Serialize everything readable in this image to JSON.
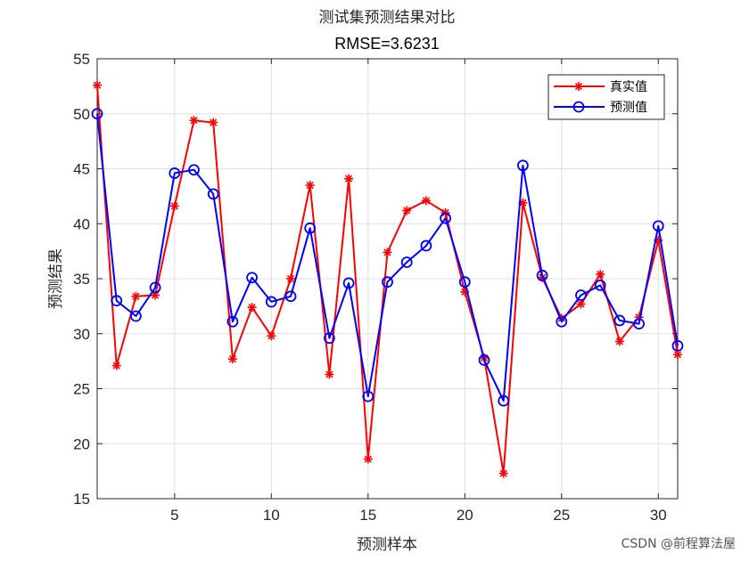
{
  "chart_data": {
    "type": "line",
    "title": "测试集预测结果对比",
    "subtitle": "RMSE=3.6231",
    "xlabel": "预测样本",
    "ylabel": "预测结果",
    "xlim": [
      1,
      31
    ],
    "ylim": [
      15,
      55
    ],
    "xticks": [
      5,
      10,
      15,
      20,
      25,
      30
    ],
    "yticks": [
      15,
      20,
      25,
      30,
      35,
      40,
      45,
      50,
      55
    ],
    "grid": true,
    "legend_position": "top-right",
    "x": [
      1,
      2,
      3,
      4,
      5,
      6,
      7,
      8,
      9,
      10,
      11,
      12,
      13,
      14,
      15,
      16,
      17,
      18,
      19,
      20,
      21,
      22,
      23,
      24,
      25,
      26,
      27,
      28,
      29,
      30,
      31
    ],
    "series": [
      {
        "name": "真实值",
        "color": "#ff0000",
        "marker": "asterisk",
        "values": [
          52.6,
          27.1,
          33.4,
          33.5,
          41.6,
          49.4,
          49.2,
          27.7,
          32.4,
          29.8,
          35.0,
          43.5,
          26.3,
          44.1,
          18.6,
          37.4,
          41.2,
          42.1,
          41.0,
          33.8,
          27.8,
          17.3,
          41.9,
          35.1,
          31.4,
          32.7,
          35.4,
          29.3,
          31.5,
          38.5,
          28.1
        ]
      },
      {
        "name": "预测值",
        "color": "#0000ff",
        "marker": "circle",
        "values": [
          50.0,
          33.0,
          31.6,
          34.2,
          44.6,
          44.9,
          42.7,
          31.1,
          35.1,
          32.9,
          33.4,
          39.6,
          29.6,
          34.6,
          24.3,
          34.7,
          36.5,
          38.0,
          40.5,
          34.7,
          27.6,
          23.9,
          45.3,
          35.3,
          31.1,
          33.5,
          34.4,
          31.2,
          30.9,
          39.8,
          28.9
        ]
      }
    ]
  },
  "watermark": "CSDN @前程算法屋"
}
